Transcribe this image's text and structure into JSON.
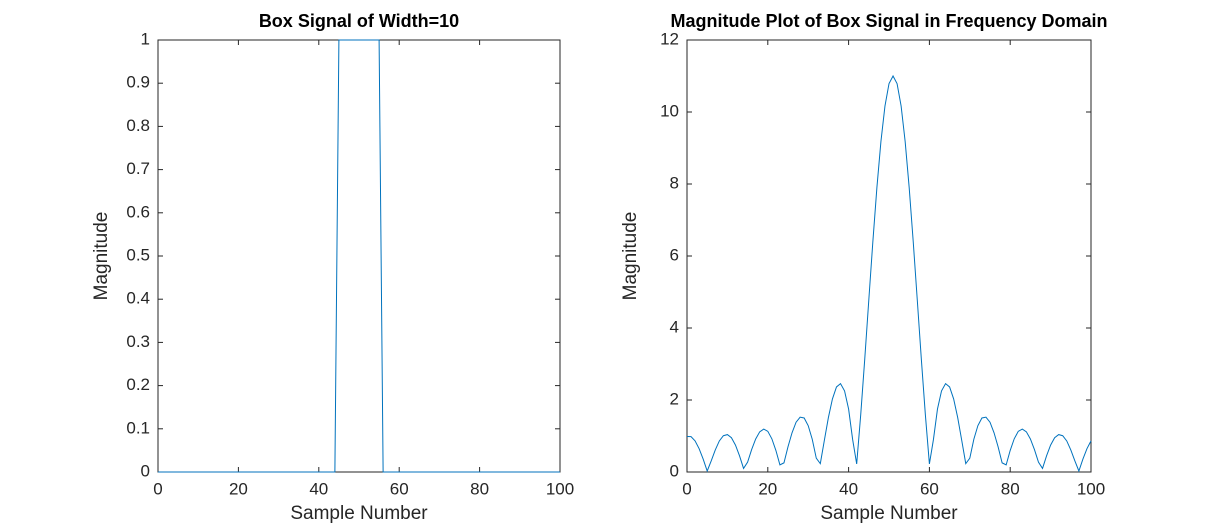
{
  "chart_data": [
    {
      "type": "line",
      "title": "Box Signal of Width=10",
      "xlabel": "Sample Number",
      "ylabel": "Magnitude",
      "x": [
        0,
        44,
        45,
        55,
        56,
        100
      ],
      "values": [
        0,
        0,
        1,
        1,
        0,
        0
      ],
      "color": "#0072bd",
      "xlim": [
        0,
        100
      ],
      "xticks": [
        0,
        20,
        40,
        60,
        80,
        100
      ],
      "ylim": [
        0,
        1
      ],
      "yticks": [
        0,
        0.1,
        0.2,
        0.3,
        0.4,
        0.5,
        0.6,
        0.7,
        0.8,
        0.9,
        1
      ]
    },
    {
      "type": "line",
      "title": "Magnitude Plot of Box Signal in Frequency Domain",
      "xlabel": "Sample Number",
      "ylabel": "Magnitude",
      "x": [
        0,
        1,
        2,
        3,
        4,
        5,
        6,
        7,
        8,
        9,
        10,
        11,
        12,
        13,
        14,
        15,
        16,
        17,
        18,
        19,
        20,
        21,
        22,
        23,
        24,
        25,
        26,
        27,
        28,
        29,
        30,
        31,
        32,
        33,
        34,
        35,
        36,
        37,
        38,
        39,
        40,
        41,
        42,
        43,
        44,
        45,
        46,
        47,
        48,
        49,
        50,
        51,
        52,
        53,
        54,
        55,
        56,
        57,
        58,
        59,
        60,
        61,
        62,
        63,
        64,
        65,
        66,
        67,
        68,
        69,
        70,
        71,
        72,
        73,
        74,
        75,
        76,
        77,
        78,
        79,
        80,
        81,
        82,
        83,
        84,
        85,
        86,
        87,
        88,
        89,
        90,
        91,
        92,
        93,
        94,
        95,
        96,
        97,
        98,
        99,
        100
      ],
      "values": [
        0.986,
        0.982,
        0.864,
        0.648,
        0.359,
        0.028,
        0.31,
        0.612,
        0.862,
        1.008,
        1.039,
        0.952,
        0.747,
        0.449,
        0.099,
        0.272,
        0.624,
        0.918,
        1.117,
        1.192,
        1.13,
        0.923,
        0.6,
        0.198,
        0.254,
        0.701,
        1.089,
        1.382,
        1.524,
        1.501,
        1.288,
        0.909,
        0.384,
        0.233,
        0.881,
        1.513,
        2.03,
        2.363,
        2.454,
        2.252,
        1.75,
        0.903,
        0.225,
        1.593,
        3.14,
        4.778,
        6.393,
        7.894,
        9.18,
        10.166,
        10.788,
        11,
        10.788,
        10.166,
        9.18,
        7.894,
        6.393,
        4.778,
        3.14,
        1.593,
        0.225,
        0.903,
        1.75,
        2.252,
        2.454,
        2.363,
        2.03,
        1.513,
        0.881,
        0.233,
        0.384,
        0.909,
        1.288,
        1.501,
        1.524,
        1.382,
        1.089,
        0.701,
        0.254,
        0.198,
        0.6,
        0.923,
        1.13,
        1.192,
        1.117,
        0.918,
        0.624,
        0.272,
        0.099,
        0.449,
        0.747,
        0.952,
        1.039,
        1.008,
        0.862,
        0.612,
        0.31,
        0.028,
        0.359,
        0.648,
        0.864
      ],
      "color": "#0072bd",
      "xlim": [
        0,
        100
      ],
      "xticks": [
        0,
        20,
        40,
        60,
        80,
        100
      ],
      "ylim": [
        0,
        12
      ],
      "yticks": [
        0,
        2,
        4,
        6,
        8,
        10,
        12
      ]
    }
  ]
}
